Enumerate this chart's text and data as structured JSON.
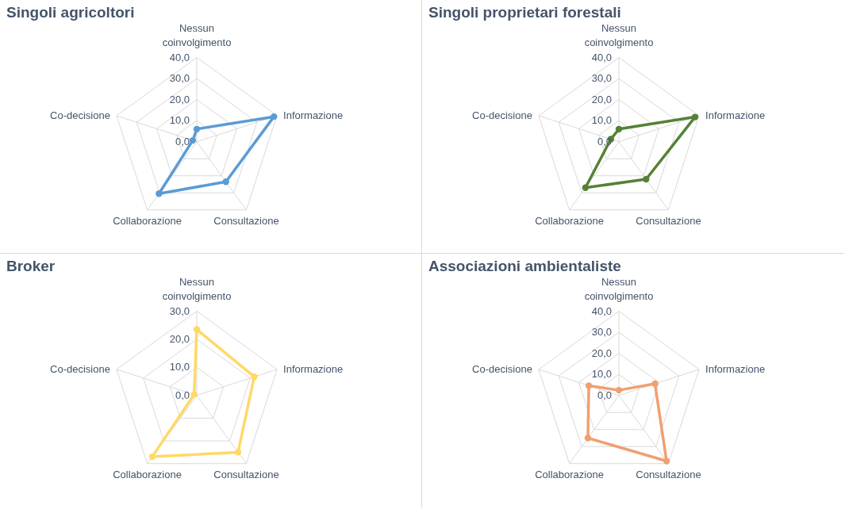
{
  "chart_data": [
    {
      "type": "radar",
      "title": "Singoli agricoltori",
      "categories": [
        "Nessun coinvolgimento",
        "Informazione",
        "Consultazione",
        "Collaborazione",
        "Co-decisione"
      ],
      "ylim": [
        0,
        40
      ],
      "yticks": [
        {
          "value": 0,
          "label": "0,0"
        },
        {
          "value": 10,
          "label": "10,0"
        },
        {
          "value": 20,
          "label": "20,0"
        },
        {
          "value": 30,
          "label": "30,0"
        },
        {
          "value": 40,
          "label": "40,0"
        }
      ],
      "grid": true,
      "marker": "circle",
      "series": [
        {
          "color": "#5b9bd5",
          "values": [
            6,
            38.5,
            23.5,
            30.5,
            2
          ]
        }
      ]
    },
    {
      "type": "radar",
      "title": "Singoli proprietari forestali",
      "categories": [
        "Nessun coinvolgimento",
        "Informazione",
        "Consultazione",
        "Collaborazione",
        "Co-decisione"
      ],
      "ylim": [
        0,
        40
      ],
      "yticks": [
        {
          "value": 0,
          "label": "0,0"
        },
        {
          "value": 10,
          "label": "10,0"
        },
        {
          "value": 20,
          "label": "20,0"
        },
        {
          "value": 30,
          "label": "30,0"
        },
        {
          "value": 40,
          "label": "40,0"
        }
      ],
      "grid": true,
      "marker": "circle",
      "series": [
        {
          "color": "#548235",
          "values": [
            6,
            38,
            22,
            27,
            4
          ]
        }
      ]
    },
    {
      "type": "radar",
      "title": "Broker",
      "categories": [
        "Nessun coinvolgimento",
        "Informazione",
        "Consultazione",
        "Collaborazione",
        "Co-decisione"
      ],
      "ylim": [
        0,
        30
      ],
      "yticks": [
        {
          "value": 0,
          "label": "0,0"
        },
        {
          "value": 10,
          "label": "10,0"
        },
        {
          "value": 20,
          "label": "20,0"
        },
        {
          "value": 30,
          "label": "30,0"
        }
      ],
      "grid": true,
      "marker": "circle",
      "series": [
        {
          "color": "#ffd966",
          "values": [
            23.5,
            21.5,
            25,
            27,
            1
          ]
        }
      ]
    },
    {
      "type": "radar",
      "title": "Associazioni ambientaliste",
      "categories": [
        "Nessun coinvolgimento",
        "Informazione",
        "Consultazione",
        "Collaborazione",
        "Co-decisione"
      ],
      "ylim": [
        0,
        40
      ],
      "yticks": [
        {
          "value": 0,
          "label": "0,0"
        },
        {
          "value": 10,
          "label": "10,0"
        },
        {
          "value": 20,
          "label": "20,0"
        },
        {
          "value": 30,
          "label": "30,0"
        },
        {
          "value": 40,
          "label": "40,0"
        }
      ],
      "grid": true,
      "marker": "circle",
      "series": [
        {
          "color": "#f0a070",
          "values": [
            2.5,
            18,
            38.5,
            25,
            15
          ]
        }
      ]
    }
  ]
}
